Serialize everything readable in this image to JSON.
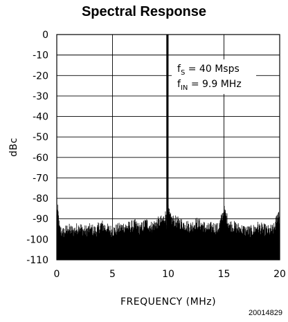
{
  "chart_data": {
    "type": "line",
    "title": "Spectral Response",
    "xlabel": "FREQUENCY (MHz)",
    "ylabel": "dBc",
    "xlim": [
      0,
      20
    ],
    "ylim": [
      -110,
      0
    ],
    "xticks": [
      0,
      5,
      10,
      15,
      20
    ],
    "yticks": [
      0,
      -10,
      -20,
      -30,
      -40,
      -50,
      -60,
      -70,
      -80,
      -90,
      -100,
      -110
    ],
    "grid": true,
    "annotations": {
      "fs": {
        "main": "f",
        "sub": "S",
        "rest": " = 40 Msps"
      },
      "fin": {
        "main": "f",
        "sub": "IN",
        "rest": " = 9.9 MHz"
      }
    },
    "series": [
      {
        "values_description": "FFT spectrum",
        "x": [
          0,
          0.1,
          0.25,
          0.5,
          1,
          1.5,
          2,
          2.5,
          3,
          3.5,
          4,
          4.5,
          5,
          5.5,
          6,
          6.5,
          7,
          7.5,
          8,
          8.5,
          9,
          9.5,
          9.8,
          9.9,
          10.0,
          10.2,
          10.5,
          11,
          11.5,
          12,
          12.5,
          13,
          13.5,
          14,
          14.5,
          15,
          15.5,
          16,
          16.5,
          17,
          17.5,
          18,
          18.5,
          19,
          19.5,
          19.9,
          20
        ],
        "y": [
          -87,
          -86,
          -95,
          -97,
          -95,
          -96,
          -94,
          -96,
          -95,
          -96,
          -93,
          -95,
          -96,
          -95,
          -94,
          -94,
          -93,
          -95,
          -92,
          -94,
          -92,
          -91,
          -88,
          0,
          -86,
          -90,
          -91,
          -92,
          -93,
          -94,
          -92,
          -93,
          -95,
          -94,
          -95,
          -86,
          -93,
          -94,
          -95,
          -96,
          -96,
          -94,
          -95,
          -96,
          -95,
          -87,
          -91
        ]
      }
    ]
  },
  "figure_id": "20014829"
}
